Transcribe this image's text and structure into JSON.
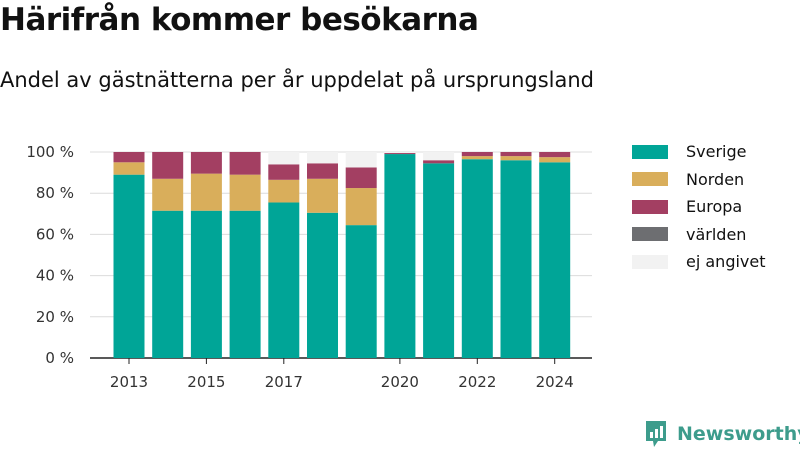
{
  "title": "Härifrån kommer besökarna",
  "subtitle": "Andel av gästnätterna per år uppdelat på ursprungsland",
  "brand": "Newsworthy",
  "chart_data": {
    "type": "bar",
    "stacked": true,
    "categories": [
      "2013",
      "2014",
      "2015",
      "2016",
      "2017",
      "2018",
      "2019",
      "2020",
      "2021",
      "2022",
      "2023",
      "2024"
    ],
    "x_tick_labels": [
      "2013",
      "",
      "2015",
      "",
      "2017",
      "",
      "",
      "2020",
      "",
      "2022",
      "",
      "2024"
    ],
    "y_tick_labels": [
      "0 %",
      "20 %",
      "40 %",
      "60 %",
      "80 %",
      "100 %"
    ],
    "ylim": [
      0,
      100
    ],
    "grid": true,
    "legend_position": "right",
    "series": [
      {
        "name": "Sverige",
        "color": "#00a597",
        "values": [
          89,
          71.5,
          71.5,
          71.5,
          75.5,
          70.5,
          64.5,
          99,
          94.5,
          96.5,
          96,
          95
        ]
      },
      {
        "name": "Norden",
        "color": "#d9ae5b",
        "values": [
          6,
          15.5,
          18,
          17.5,
          11,
          16.5,
          18,
          0,
          0,
          1.5,
          2,
          2.5
        ]
      },
      {
        "name": "Europa",
        "color": "#a33f62",
        "values": [
          5,
          13,
          10.5,
          11,
          7.5,
          7.5,
          10,
          0.5,
          1.5,
          2,
          2,
          2.5
        ]
      },
      {
        "name": "världen",
        "color": "#6d6e71",
        "values": [
          0,
          0,
          0,
          0,
          0,
          0,
          0,
          0,
          0,
          0,
          0,
          0
        ]
      },
      {
        "name": "ej angivet",
        "color": "#f2f2f2",
        "values": [
          0,
          0,
          0,
          0,
          6,
          5.5,
          7.5,
          0.5,
          4,
          0,
          0,
          0
        ]
      }
    ]
  }
}
